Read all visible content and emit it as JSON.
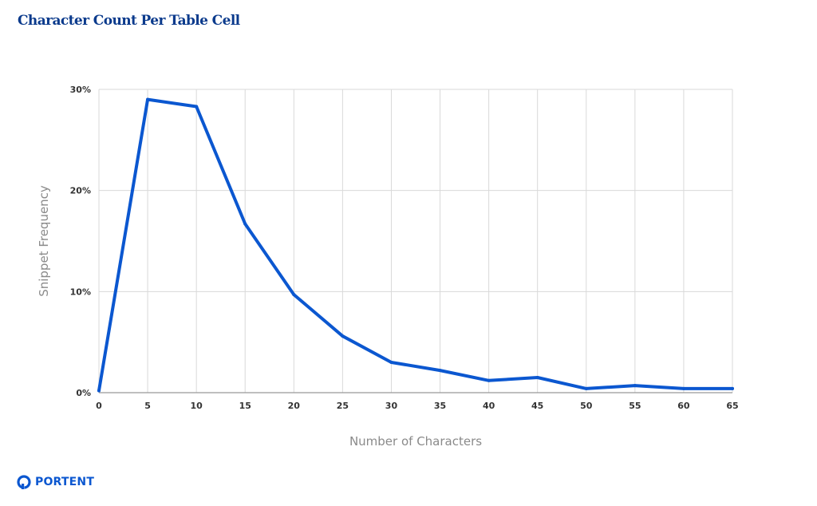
{
  "logo": {
    "text": "PORTENT",
    "icon": "portent-logo-icon"
  },
  "colors": {
    "title": "#0a3a8c",
    "line": "#0b57d0",
    "grid": "#d9d9d9",
    "axis": "#999999"
  },
  "chart_data": {
    "type": "line",
    "title": "Character Count Per Table Cell",
    "xlabel": "Number of Characters",
    "ylabel": "Snippet Frequency",
    "x": [
      0,
      5,
      10,
      15,
      20,
      25,
      30,
      35,
      40,
      45,
      50,
      55,
      60,
      65
    ],
    "x_tick_labels": [
      "0",
      "5",
      "10",
      "15",
      "20",
      "25",
      "30",
      "35",
      "40",
      "45",
      "50",
      "55",
      "60",
      "65"
    ],
    "y_tick_values": [
      0,
      10,
      20,
      30
    ],
    "y_tick_labels": [
      "0%",
      "10%",
      "20%",
      "30%"
    ],
    "xlim": [
      0,
      65
    ],
    "ylim": [
      0,
      30
    ],
    "grid": true,
    "series": [
      {
        "name": "Snippet Frequency",
        "values": [
          0.2,
          29.0,
          28.3,
          16.7,
          9.7,
          5.6,
          3.0,
          2.2,
          1.2,
          1.5,
          0.4,
          0.7,
          0.4,
          0.4
        ]
      }
    ]
  }
}
